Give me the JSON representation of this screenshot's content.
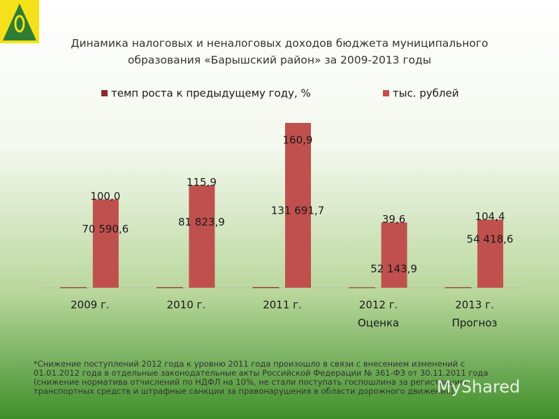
{
  "chart_data": {
    "type": "bar",
    "title": "Динамика налоговых и неналоговых доходов бюджета муниципального образования «Барышский район» за 2009-2013 годы",
    "categories": [
      "2009 г.",
      "2010 г.",
      "2011 г.",
      "2012 г.",
      "2013 г."
    ],
    "category_notes": [
      null,
      null,
      null,
      "Оценка",
      "Прогноз"
    ],
    "series": [
      {
        "name": "темп роста к предыдущему году, %",
        "color": "#8b2b2b",
        "values": [
          100.0,
          115.9,
          160.9,
          39.6,
          104.4
        ],
        "value_labels": [
          "100,0",
          "115,9",
          "160,9",
          "39,6",
          "104,4"
        ]
      },
      {
        "name": "тыс. рублей",
        "color": "#c0504d",
        "values": [
          70590.6,
          81823.9,
          131691.7,
          52143.9,
          54418.6
        ],
        "value_labels": [
          "70 590,6",
          "81 823,9",
          "131 691,7",
          "52 143,9",
          "54 418,6"
        ]
      }
    ],
    "footnote": "*Снижение поступлений 2012 года к уровню 2011 года произошло в связи с внесением изменений с 01.01.2012 года в отдельные законодательные акты Российской Федерации № 361-ФЗ от 30.11.2011 года (снижение норматива отчислений по НДФЛ на 10%, не стали поступать госпошлина за регистрацию транспортных средств и штрафные санкции за правонарушения в области дорожного движения).",
    "watermark": "MyShared"
  }
}
